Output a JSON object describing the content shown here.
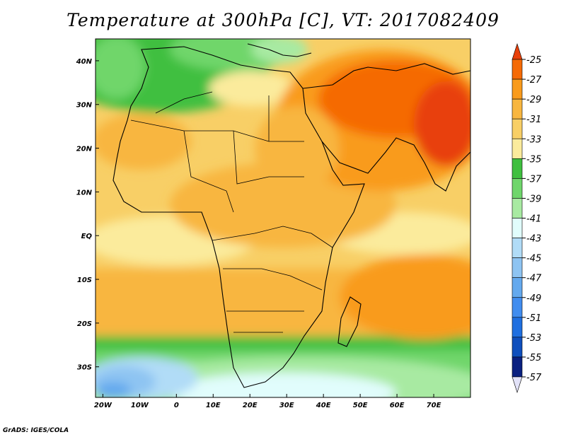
{
  "title": "Temperature at 300hPa [C], VT: 2017082409",
  "credit": "GrADS: IGES/COLA",
  "map": {
    "lon_labels": [
      "20W",
      "10W",
      "0",
      "10E",
      "20E",
      "30E",
      "40E",
      "50E",
      "60E",
      "70E"
    ],
    "lat_labels": [
      "40N",
      "30N",
      "20N",
      "10N",
      "EQ",
      "10S",
      "20S",
      "30S"
    ],
    "lon_values": [
      -20,
      -10,
      0,
      10,
      20,
      30,
      40,
      50,
      60,
      70
    ],
    "lat_values": [
      40,
      30,
      20,
      10,
      0,
      -10,
      -20,
      -30
    ],
    "lon_range": [
      -22,
      80
    ],
    "lat_range": [
      -37,
      45
    ]
  },
  "colorbar": {
    "labels": [
      "-25",
      "-27",
      "-29",
      "-31",
      "-33",
      "-35",
      "-37",
      "-39",
      "-41",
      "-43",
      "-45",
      "-47",
      "-49",
      "-51",
      "-53",
      "-55",
      "-57"
    ],
    "colors": [
      "#e8400a",
      "#f56a06",
      "#f99b1c",
      "#f8b63f",
      "#f8cf66",
      "#fbeb9c",
      "#3fbf3f",
      "#6fd66b",
      "#a8eaa2",
      "#e1fdfc",
      "#b1dcf7",
      "#8ec4f2",
      "#64a9ee",
      "#418def",
      "#1f6fe0",
      "#0f4fbd",
      "#0a2080",
      "#e2e2f8"
    ]
  }
}
